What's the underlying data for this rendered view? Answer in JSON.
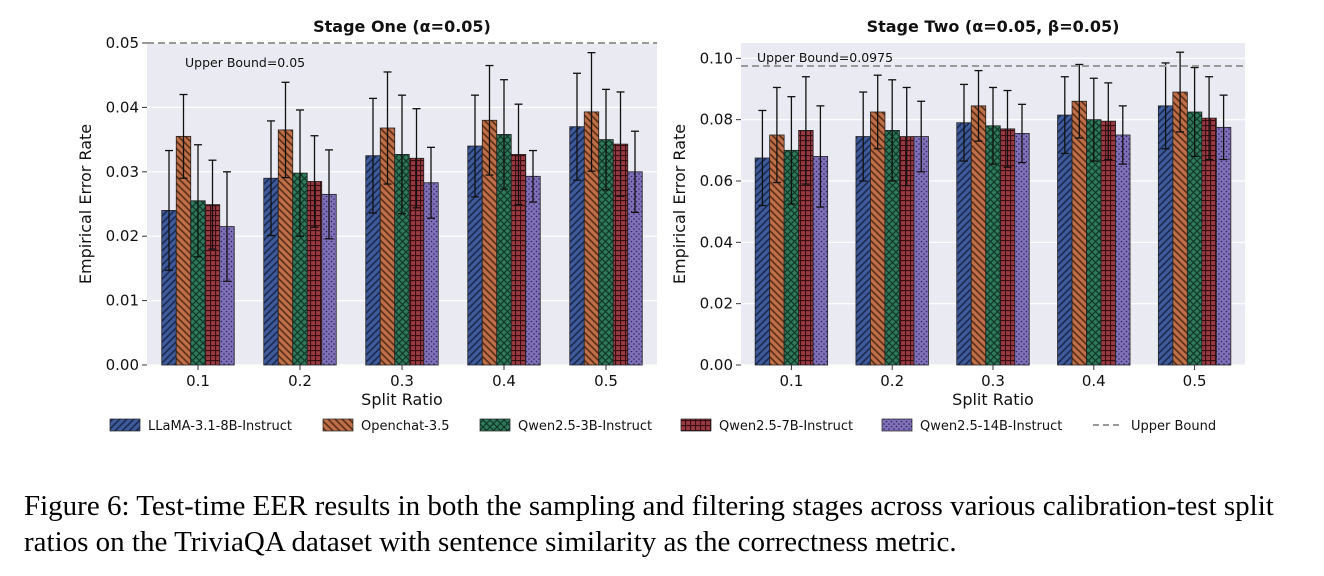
{
  "chart_data": [
    {
      "type": "bar",
      "title": "Stage One (α=0.05)",
      "xlabel": "Split Ratio",
      "ylabel": "Empirical Error Rate",
      "categories": [
        "0.1",
        "0.2",
        "0.3",
        "0.4",
        "0.5"
      ],
      "ylim": [
        0,
        0.05
      ],
      "yticks": [
        "0.00",
        "0.01",
        "0.02",
        "0.03",
        "0.04",
        "0.05"
      ],
      "grid": true,
      "upper_bound": 0.05,
      "upper_bound_label": "Upper Bound=0.05",
      "series": [
        {
          "name": "LLaMA-3.1-8B-Instruct",
          "values": [
            0.024,
            0.029,
            0.0325,
            0.034,
            0.037
          ],
          "errors": [
            0.0093,
            0.0089,
            0.0089,
            0.0079,
            0.0083
          ]
        },
        {
          "name": "Openchat-3.5",
          "values": [
            0.0355,
            0.0365,
            0.0368,
            0.038,
            0.0393
          ],
          "errors": [
            0.0065,
            0.0074,
            0.0087,
            0.0085,
            0.0092
          ]
        },
        {
          "name": "Qwen2.5-3B-Instruct",
          "values": [
            0.0255,
            0.0298,
            0.0327,
            0.0358,
            0.035
          ],
          "errors": [
            0.0087,
            0.0098,
            0.0092,
            0.0085,
            0.0078
          ]
        },
        {
          "name": "Qwen2.5-7B-Instruct",
          "values": [
            0.0249,
            0.0285,
            0.0321,
            0.0327,
            0.0343
          ],
          "errors": [
            0.0069,
            0.0071,
            0.0077,
            0.0078,
            0.0081
          ]
        },
        {
          "name": "Qwen2.5-14B-Instruct",
          "values": [
            0.0215,
            0.0265,
            0.0283,
            0.0293,
            0.03
          ],
          "errors": [
            0.0085,
            0.0069,
            0.0055,
            0.004,
            0.0063
          ]
        }
      ]
    },
    {
      "type": "bar",
      "title": "Stage Two (α=0.05, β=0.05)",
      "xlabel": "Split Ratio",
      "ylabel": "Empirical Error Rate",
      "categories": [
        "0.1",
        "0.2",
        "0.3",
        "0.4",
        "0.5"
      ],
      "ylim": [
        0,
        0.105
      ],
      "yticks": [
        "0.00",
        "0.02",
        "0.04",
        "0.06",
        "0.08",
        "0.10"
      ],
      "grid": true,
      "upper_bound": 0.0975,
      "upper_bound_label": "Upper Bound=0.0975",
      "series": [
        {
          "name": "LLaMA-3.1-8B-Instruct",
          "values": [
            0.0675,
            0.0745,
            0.079,
            0.0815,
            0.0845
          ],
          "errors": [
            0.0155,
            0.0145,
            0.0125,
            0.0125,
            0.014
          ]
        },
        {
          "name": "Openchat-3.5",
          "values": [
            0.075,
            0.0825,
            0.0845,
            0.086,
            0.089
          ],
          "errors": [
            0.0155,
            0.012,
            0.0115,
            0.012,
            0.013
          ]
        },
        {
          "name": "Qwen2.5-3B-Instruct",
          "values": [
            0.07,
            0.0765,
            0.078,
            0.08,
            0.0825
          ],
          "errors": [
            0.0175,
            0.0165,
            0.0125,
            0.0135,
            0.0145
          ]
        },
        {
          "name": "Qwen2.5-7B-Instruct",
          "values": [
            0.0765,
            0.0745,
            0.077,
            0.0795,
            0.0805
          ],
          "errors": [
            0.0175,
            0.016,
            0.0125,
            0.0125,
            0.0135
          ]
        },
        {
          "name": "Qwen2.5-14B-Instruct",
          "values": [
            0.068,
            0.0745,
            0.0755,
            0.075,
            0.0775
          ],
          "errors": [
            0.0165,
            0.0115,
            0.0095,
            0.0095,
            0.0105
          ]
        }
      ]
    }
  ],
  "legend": {
    "placement": "bottom",
    "entries": [
      "LLaMA-3.1-8B-Instruct",
      "Openchat-3.5",
      "Qwen2.5-3B-Instruct",
      "Qwen2.5-7B-Instruct",
      "Qwen2.5-14B-Instruct",
      "Upper Bound"
    ]
  },
  "colors": {
    "series": [
      "#3f5a9a",
      "#bf6f47",
      "#2f7a5a",
      "#983a42",
      "#8070b8"
    ],
    "plot_background": "#eaeaf2",
    "upper_bound_line": "#999999"
  },
  "caption": "Figure 6: Test-time EER results in both the sampling and filtering stages across various calibration-test split ratios on the TriviaQA dataset with sentence similarity as the correctness metric."
}
